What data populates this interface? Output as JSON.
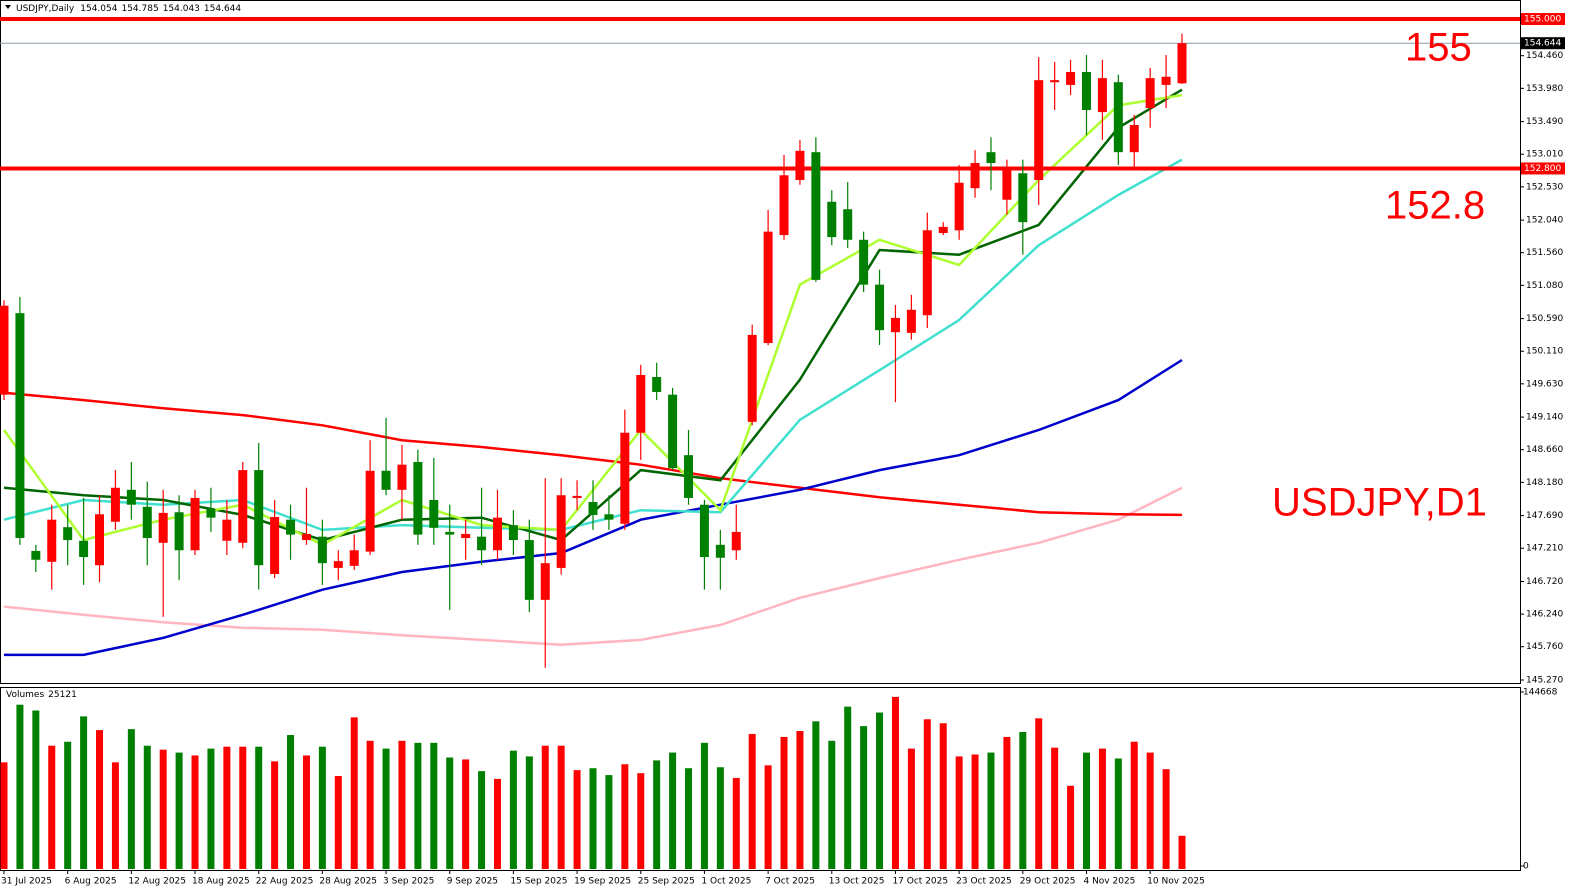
{
  "chart_data": [
    {
      "type": "candlestick",
      "title": "USDJPY,Daily",
      "up_color": "#ff0000",
      "down_color": "#008000",
      "categories": [
        "31 Jul 2025",
        null,
        null,
        null,
        "6 Aug 2025",
        null,
        null,
        null,
        "12 Aug 2025",
        null,
        null,
        null,
        "18 Aug 2025",
        null,
        null,
        null,
        "22 Aug 2025",
        null,
        null,
        null,
        "28 Aug 2025",
        null,
        null,
        null,
        "3 Sep 2025",
        null,
        null,
        null,
        "9 Sep 2025",
        null,
        null,
        null,
        "15 Sep 2025",
        null,
        null,
        null,
        "19 Sep 2025",
        null,
        null,
        null,
        "25 Sep 2025",
        null,
        null,
        null,
        "1 Oct 2025",
        null,
        null,
        null,
        "7 Oct 2025",
        null,
        null,
        null,
        "13 Oct 2025",
        null,
        null,
        null,
        "17 Oct 2025",
        null,
        null,
        null,
        "23 Oct 2025",
        null,
        null,
        null,
        "29 Oct 2025",
        null,
        null,
        null,
        "4 Nov 2025",
        null,
        null,
        null,
        "10 Nov 2025",
        null,
        null
      ],
      "open": [
        149.47,
        150.67,
        147.17,
        147.01,
        147.52,
        147.32,
        146.96,
        147.6,
        148.07,
        147.82,
        147.29,
        147.74,
        147.18,
        147.79,
        147.32,
        147.29,
        148.36,
        146.83,
        147.63,
        147.33,
        147.38,
        146.92,
        146.95,
        147.16,
        148.35,
        148.07,
        148.48,
        147.92,
        147.45,
        147.36,
        147.38,
        147.18,
        147.55,
        147.33,
        146.45,
        146.92,
        147.95,
        147.89,
        147.71,
        147.57,
        148.91,
        149.73,
        149.47,
        148.58,
        147.85,
        147.26,
        147.18,
        149.07,
        150.23,
        151.82,
        152.63,
        153.04,
        152.31,
        152.2,
        151.75,
        151.09,
        150.39,
        150.38,
        150.64,
        151.85,
        151.89,
        152.51,
        153.04,
        152.34,
        152.73,
        152.63,
        154.07,
        154.03,
        154.22,
        153.63,
        154.07,
        153.04,
        153.69,
        154.03,
        154.054
      ],
      "high": [
        150.86,
        150.91,
        147.26,
        147.85,
        147.85,
        147.95,
        147.99,
        148.36,
        148.48,
        148.19,
        148.07,
        147.99,
        148.07,
        148.1,
        147.92,
        148.48,
        148.76,
        147.92,
        147.85,
        148.1,
        147.63,
        147.18,
        147.41,
        148.8,
        149.13,
        148.73,
        148.66,
        148.54,
        147.85,
        147.63,
        148.1,
        148.07,
        147.77,
        147.63,
        148.24,
        148.24,
        148.21,
        148.21,
        147.99,
        149.25,
        149.91,
        149.94,
        149.57,
        148.95,
        147.92,
        147.48,
        147.85,
        150.5,
        152.19,
        153.0,
        153.22,
        153.26,
        152.48,
        152.6,
        151.87,
        151.31,
        150.79,
        150.94,
        152.15,
        152.01,
        152.85,
        153.07,
        153.26,
        152.93,
        152.93,
        154.44,
        154.37,
        154.4,
        154.47,
        154.4,
        154.18,
        153.59,
        154.28,
        154.47,
        154.785
      ],
      "low": [
        149.39,
        147.26,
        146.86,
        146.6,
        146.96,
        146.67,
        146.71,
        147.48,
        147.63,
        146.96,
        146.2,
        146.74,
        147.11,
        147.45,
        147.11,
        147.21,
        146.6,
        146.77,
        147.04,
        147.26,
        146.67,
        146.74,
        146.89,
        147.11,
        147.99,
        147.63,
        147.26,
        147.26,
        146.3,
        147.04,
        146.96,
        147.04,
        147.11,
        146.27,
        145.45,
        146.82,
        147.77,
        147.48,
        147.48,
        147.48,
        148.51,
        149.39,
        148.36,
        147.85,
        146.6,
        146.6,
        147.04,
        149.02,
        150.2,
        151.75,
        152.56,
        151.13,
        151.67,
        151.63,
        150.98,
        150.2,
        149.36,
        150.28,
        150.45,
        151.82,
        151.75,
        152.37,
        152.48,
        152.12,
        151.53,
        152.26,
        153.66,
        153.88,
        153.29,
        153.22,
        152.85,
        152.81,
        153.4,
        153.69,
        154.043
      ],
      "close": [
        150.78,
        147.36,
        147.04,
        147.63,
        147.33,
        147.08,
        147.71,
        148.1,
        147.85,
        147.36,
        147.73,
        147.18,
        147.95,
        147.66,
        147.63,
        148.36,
        146.96,
        147.67,
        147.41,
        147.42,
        146.99,
        147.02,
        147.18,
        148.35,
        148.07,
        148.44,
        147.41,
        147.51,
        147.41,
        147.42,
        147.18,
        147.66,
        147.33,
        146.45,
        146.99,
        147.99,
        147.98,
        147.7,
        147.63,
        148.91,
        149.76,
        149.51,
        148.39,
        147.95,
        147.08,
        147.07,
        147.45,
        150.35,
        151.87,
        152.7,
        153.06,
        151.16,
        151.79,
        151.75,
        151.09,
        150.42,
        150.6,
        150.72,
        151.89,
        151.94,
        152.59,
        152.88,
        152.88,
        152.81,
        152.01,
        154.1,
        154.1,
        154.22,
        153.66,
        154.13,
        153.04,
        153.44,
        154.13,
        154.15,
        154.644
      ],
      "lines": [
        {
          "color": "#ffb6c1",
          "x": [
            0,
            5,
            10,
            15,
            20,
            25,
            30,
            35,
            40,
            45,
            50,
            55,
            60,
            65,
            70,
            74
          ],
          "values": [
            146.35,
            146.23,
            146.12,
            146.04,
            146.01,
            145.93,
            145.86,
            145.79,
            145.86,
            146.08,
            146.48,
            146.77,
            147.04,
            147.29,
            147.63,
            148.1
          ]
        },
        {
          "color": "#ff0000",
          "x": [
            0,
            5,
            10,
            15,
            20,
            25,
            30,
            35,
            40,
            45,
            50,
            55,
            60,
            65,
            70,
            74
          ],
          "values": [
            149.5,
            149.39,
            149.27,
            149.17,
            149.02,
            148.8,
            148.7,
            148.58,
            148.44,
            148.24,
            148.1,
            147.96,
            147.85,
            147.74,
            147.71,
            147.7
          ]
        },
        {
          "color": "#0000cd",
          "x": [
            0,
            5,
            10,
            15,
            20,
            25,
            30,
            35,
            40,
            45,
            50,
            55,
            60,
            65,
            70,
            74
          ],
          "values": [
            145.64,
            145.64,
            145.89,
            146.23,
            146.6,
            146.86,
            147.01,
            147.14,
            147.63,
            147.85,
            148.07,
            148.36,
            148.58,
            148.95,
            149.39,
            149.98
          ]
        },
        {
          "color": "#40e0d0",
          "x": [
            0,
            5,
            10,
            15,
            20,
            25,
            30,
            35,
            40,
            45,
            50,
            55,
            60,
            65,
            70,
            74
          ],
          "values": [
            147.63,
            147.92,
            147.85,
            147.92,
            147.48,
            147.55,
            147.51,
            147.48,
            147.77,
            147.74,
            149.1,
            149.83,
            150.57,
            151.67,
            152.41,
            152.93
          ]
        },
        {
          "color": "#006400",
          "x": [
            0,
            5,
            10,
            15,
            20,
            25,
            30,
            35,
            40,
            45,
            50,
            55,
            60,
            65,
            70,
            74
          ],
          "values": [
            148.1,
            147.99,
            147.92,
            147.7,
            147.33,
            147.63,
            147.66,
            147.33,
            148.36,
            148.21,
            149.69,
            151.6,
            151.53,
            151.97,
            153.4,
            153.96
          ]
        },
        {
          "color": "#adff2f",
          "x": [
            0,
            5,
            10,
            15,
            20,
            25,
            30,
            35,
            40,
            45,
            50,
            55,
            60,
            65,
            70,
            74
          ],
          "values": [
            148.95,
            147.33,
            147.63,
            147.85,
            147.26,
            147.92,
            147.55,
            147.48,
            148.95,
            147.77,
            151.09,
            151.75,
            151.38,
            152.63,
            153.73,
            153.88
          ]
        }
      ],
      "hlines": [
        {
          "value": 155,
          "label": "155.000",
          "color": "#ff0000"
        },
        {
          "value": 152.8,
          "label": "152.800",
          "color": "#ff0000"
        }
      ],
      "annotations": [
        "155",
        "152.8",
        "USDJPY,D1"
      ],
      "ylim": [
        145.226,
        155.28
      ],
      "yticks": [
        {
          "value": 154.46,
          "label": "154.460"
        },
        {
          "value": 153.98,
          "label": "153.980"
        },
        {
          "value": 153.49,
          "label": "153.490"
        },
        {
          "value": 153.01,
          "label": "153.010"
        },
        {
          "value": 152.53,
          "label": "152.530"
        },
        {
          "value": 152.04,
          "label": "152.040"
        },
        {
          "value": 151.56,
          "label": "151.560"
        },
        {
          "value": 151.08,
          "label": "151.080"
        },
        {
          "value": 150.59,
          "label": "150.590"
        },
        {
          "value": 150.11,
          "label": "150.110"
        },
        {
          "value": 149.63,
          "label": "149.630"
        },
        {
          "value": 149.14,
          "label": "149.140"
        },
        {
          "value": 148.66,
          "label": "148.660"
        },
        {
          "value": 148.18,
          "label": "148.180"
        },
        {
          "value": 147.69,
          "label": "147.690"
        },
        {
          "value": 147.21,
          "label": "147.210"
        },
        {
          "value": 146.72,
          "label": "146.720"
        },
        {
          "value": 146.24,
          "label": "146.240"
        },
        {
          "value": 145.76,
          "label": "145.760"
        },
        {
          "value": 145.27,
          "label": "145.270"
        }
      ]
    },
    {
      "type": "bar",
      "title": "Volumes",
      "values": [
        86200,
        134100,
        129300,
        100000,
        103300,
        124400,
        113000,
        86200,
        113800,
        100000,
        96700,
        94300,
        91900,
        97600,
        99200,
        99200,
        99200,
        87000,
        108900,
        91900,
        99200,
        74800,
        123600,
        104100,
        97600,
        104100,
        102400,
        102400,
        90200,
        88600,
        78900,
        72400,
        95900,
        91100,
        100000,
        100000,
        79700,
        81300,
        75600,
        84600,
        77200,
        87800,
        94300,
        81300,
        102400,
        82100,
        73200,
        109800,
        83700,
        107300,
        112200,
        120300,
        104100,
        132500,
        116300,
        127600,
        140600,
        97600,
        122000,
        118700,
        91100,
        92700,
        94300,
        107300,
        111400,
        122800,
        98400,
        66700,
        94300,
        97600,
        89400,
        103300,
        94300,
        80500,
        25121
      ],
      "ylim": [
        0,
        144668
      ],
      "yticks": [
        0,
        144668
      ]
    }
  ]
}
